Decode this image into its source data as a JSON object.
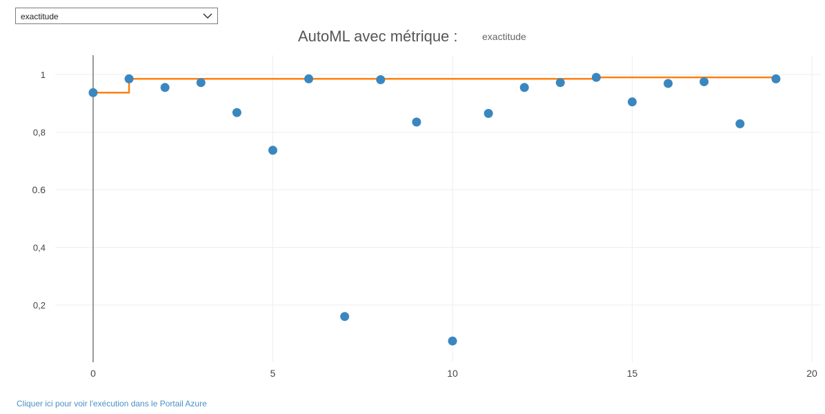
{
  "metric_selector": {
    "selected": "exactitude",
    "chevron_icon": "chevron-down-icon"
  },
  "title": {
    "main": "AutoML avec métrique :",
    "metric": "exactitude"
  },
  "link": {
    "text": "Cliquer ici pour voir l'exécution dans le Portail Azure"
  },
  "colors": {
    "points": "#3a87c0",
    "best_line": "#ff7f0e",
    "grid": "#eeeeee",
    "axis": "#555555"
  },
  "chart_data": {
    "type": "scatter",
    "title": "AutoML avec métrique : exactitude",
    "xlabel": "",
    "ylabel": "",
    "xlim": [
      0,
      20
    ],
    "ylim": [
      0,
      1.05
    ],
    "grid": true,
    "legend": "none",
    "x_ticks": [
      0,
      5,
      10,
      15,
      20
    ],
    "x_tick_labels": [
      "0",
      "5",
      "10",
      "15",
      "20"
    ],
    "y_ticks": [
      0.2,
      0.4,
      0.6,
      0.8,
      1
    ],
    "y_tick_labels": [
      "0,2",
      "0,4",
      "0.6",
      "0,8",
      "1"
    ],
    "series": [
      {
        "type": "scatter",
        "x": [
          0,
          1,
          2,
          3,
          4,
          5,
          6,
          7,
          8,
          9,
          10,
          11,
          12,
          13,
          14,
          15,
          16,
          17,
          18,
          19
        ],
        "y": [
          0.937,
          0.985,
          0.955,
          0.972,
          0.868,
          0.737,
          0.985,
          0.16,
          0.982,
          0.835,
          0.075,
          0.865,
          0.955,
          0.972,
          0.99,
          0.905,
          0.969,
          0.975,
          0.829,
          0.985
        ]
      },
      {
        "type": "step",
        "x": [
          0,
          1,
          14,
          19
        ],
        "y": [
          0.937,
          0.985,
          0.99,
          0.99
        ]
      }
    ]
  }
}
